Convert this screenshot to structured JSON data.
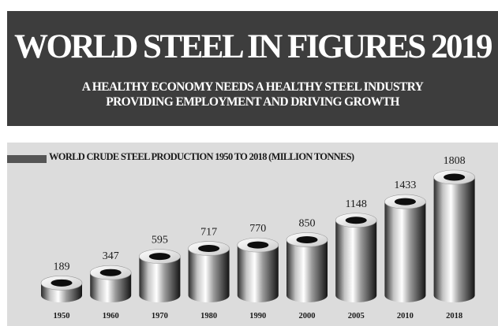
{
  "banner": {
    "title": "WORLD STEEL IN FIGURES 2019",
    "subtitle_line1": "A HEALTHY ECONOMY NEEDS A HEALTHY STEEL INDUSTRY",
    "subtitle_line2": "PROVIDING EMPLOYMENT AND DRIVING GROWTH"
  },
  "chart_data": {
    "type": "bar",
    "title": "WORLD CRUDE STEEL PRODUCTION 1950  TO 2018 (MILLION TONNES)",
    "categories": [
      "1950",
      "1960",
      "1970",
      "1980",
      "1990",
      "2000",
      "2005",
      "2010",
      "2018"
    ],
    "values": [
      189,
      347,
      595,
      717,
      770,
      850,
      1148,
      1433,
      1808
    ],
    "xlabel": "",
    "ylabel": "",
    "grid": false,
    "legend": "none"
  },
  "colors": {
    "banner_background": "#3d3d3d",
    "chart_background": "#dcdcdc",
    "text": "#1a1a1a"
  }
}
